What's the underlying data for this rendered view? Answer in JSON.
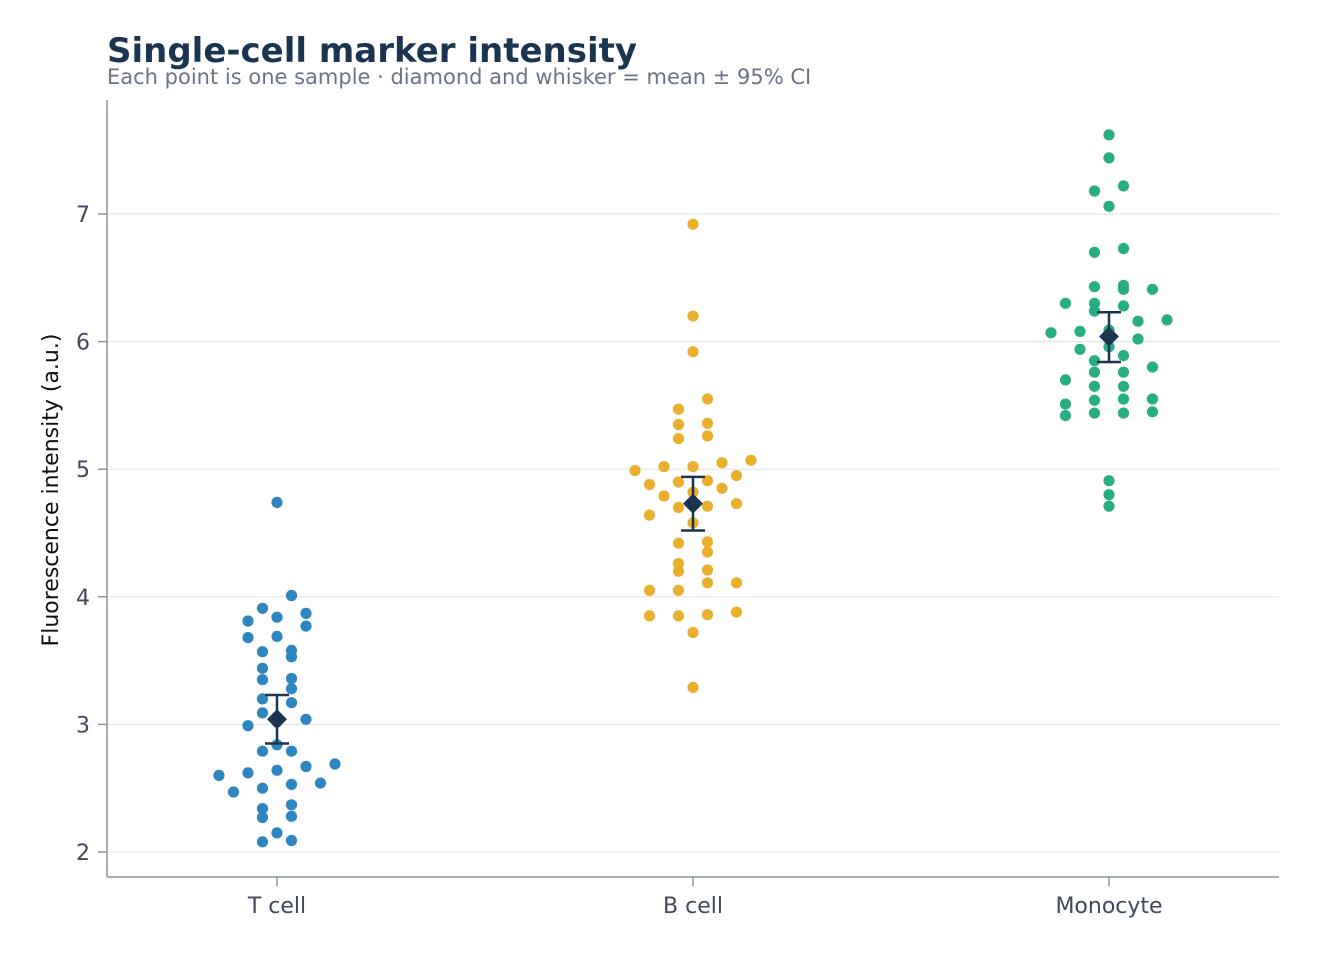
{
  "title": "Single-cell marker intensity",
  "subtitle": "Each point is one sample · diamond and whisker = mean ± 95% CI",
  "chart_data": {
    "type": "scatter",
    "title": "Single-cell marker intensity",
    "subtitle": "Each point is one sample · diamond and whisker = mean ± 95% CI",
    "xlabel": "",
    "ylabel": "Fluorescence intensity (a.u.)",
    "ylim": [
      1.8,
      7.85
    ],
    "yticks": [
      2,
      3,
      4,
      5,
      6,
      7
    ],
    "grid": "horizontal",
    "categories": [
      "T cell",
      "B cell",
      "Monocyte"
    ],
    "series": [
      {
        "category": "T cell",
        "color": "#2e86c1",
        "values": [
          2.08,
          2.09,
          2.15,
          2.27,
          2.28,
          2.34,
          2.37,
          2.47,
          2.5,
          2.53,
          2.54,
          2.6,
          2.62,
          2.64,
          2.67,
          2.69,
          2.79,
          2.79,
          2.84,
          2.99,
          3.02,
          3.04,
          3.09,
          3.17,
          3.2,
          3.28,
          3.35,
          3.36,
          3.44,
          3.53,
          3.57,
          3.58,
          3.68,
          3.69,
          3.77,
          3.81,
          3.84,
          3.87,
          3.91,
          4.01,
          4.74
        ],
        "mean": 3.04,
        "ci": [
          2.85,
          3.23
        ]
      },
      {
        "category": "B cell",
        "color": "#ebaf2e",
        "values": [
          3.29,
          3.72,
          3.85,
          3.85,
          3.86,
          3.88,
          4.05,
          4.05,
          4.11,
          4.11,
          4.2,
          4.21,
          4.26,
          4.35,
          4.42,
          4.43,
          4.58,
          4.64,
          4.7,
          4.71,
          4.73,
          4.79,
          4.82,
          4.85,
          4.88,
          4.9,
          4.91,
          4.95,
          4.99,
          5.02,
          5.02,
          5.05,
          5.07,
          5.24,
          5.26,
          5.35,
          5.36,
          5.47,
          5.55,
          5.92,
          6.2,
          6.92
        ],
        "mean": 4.73,
        "ci": [
          4.52,
          4.94
        ]
      },
      {
        "category": "Monocyte",
        "color": "#27ae82",
        "values": [
          4.71,
          4.8,
          4.91,
          5.42,
          5.44,
          5.44,
          5.45,
          5.51,
          5.54,
          5.55,
          5.55,
          5.65,
          5.65,
          5.7,
          5.76,
          5.76,
          5.8,
          5.85,
          5.89,
          5.94,
          5.96,
          6.02,
          6.07,
          6.08,
          6.09,
          6.16,
          6.17,
          6.24,
          6.28,
          6.3,
          6.3,
          6.41,
          6.41,
          6.43,
          6.44,
          6.7,
          6.73,
          7.06,
          7.18,
          7.22,
          7.44,
          7.62
        ],
        "mean": 6.04,
        "ci": [
          5.84,
          6.23
        ]
      }
    ],
    "summary_color": "#1b3550",
    "grid_color": "#e3e6ea",
    "axis_color": "#8a93a3"
  }
}
